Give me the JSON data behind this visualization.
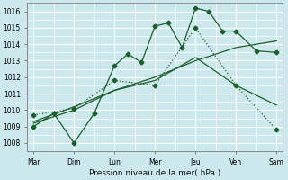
{
  "xlabel": "Pression niveau de la mer( hPa )",
  "bg_color": "#cce8ec",
  "grid_color": "#ffffff",
  "line_color": "#1a5e2a",
  "x_labels": [
    "Mar",
    "Dim",
    "Lun",
    "Mer",
    "Jeu",
    "Ven",
    "Sam"
  ],
  "x_ticks": [
    0,
    1,
    2,
    3,
    4,
    5,
    6
  ],
  "xlim": [
    -0.15,
    6.15
  ],
  "ylim": [
    1007.5,
    1016.5
  ],
  "yticks": [
    1008,
    1009,
    1010,
    1011,
    1012,
    1013,
    1014,
    1015,
    1016
  ],
  "line_jagged": {
    "x": [
      0,
      0.5,
      1.0,
      1.5,
      2.0,
      2.33,
      2.67,
      3.0,
      3.33,
      3.67,
      4.0,
      4.33,
      4.67,
      5.0,
      5.5,
      6.0
    ],
    "y": [
      1009.0,
      1009.8,
      1008.0,
      1009.8,
      1012.7,
      1013.4,
      1012.9,
      1015.1,
      1015.3,
      1013.8,
      1016.2,
      1016.0,
      1014.8,
      1014.8,
      1013.6,
      1013.5
    ],
    "style": "-",
    "marker": "D",
    "markersize": 2.5
  },
  "line_rising": {
    "x": [
      0,
      1,
      2,
      3,
      4,
      5,
      6
    ],
    "y": [
      1009.3,
      1010.2,
      1011.2,
      1012.0,
      1013.0,
      1013.8,
      1014.2
    ],
    "style": "-",
    "lw": 0.9
  },
  "line_bell": {
    "x": [
      0,
      1,
      2,
      3,
      4,
      5,
      6
    ],
    "y": [
      1009.2,
      1010.0,
      1011.2,
      1011.8,
      1013.2,
      1011.5,
      1010.3
    ],
    "style": "-",
    "lw": 0.9
  },
  "line_dotted": {
    "x": [
      0,
      1,
      2,
      3,
      4,
      5,
      6
    ],
    "y": [
      1009.7,
      1010.1,
      1011.8,
      1011.5,
      1015.0,
      1011.5,
      1008.8
    ],
    "style": ":",
    "marker": "D",
    "markersize": 2.5,
    "lw": 0.9
  }
}
